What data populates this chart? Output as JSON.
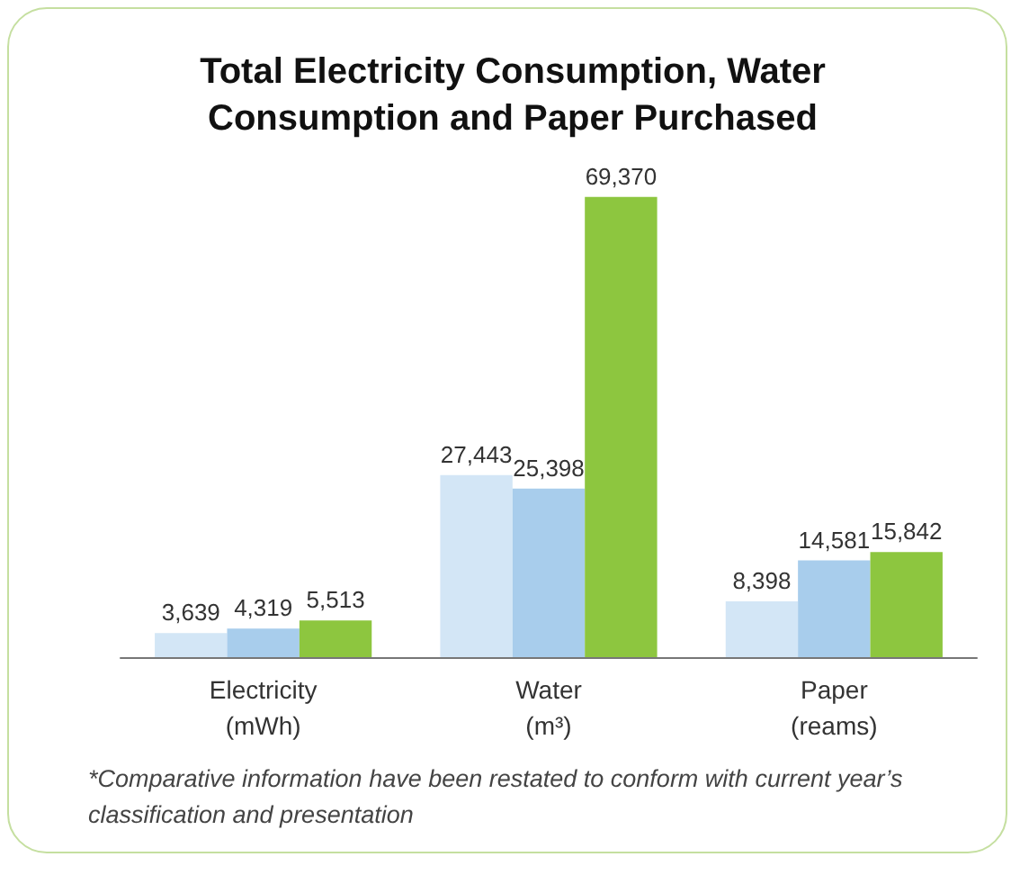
{
  "chart_data": {
    "type": "bar",
    "title": "Total Electricity Consumption, Water Consumption and Paper Purchased",
    "categories": [
      "Electricity\n(mWh)",
      "Water\n(m³)",
      "Paper\n(reams)"
    ],
    "series": [
      {
        "color": "#d3e6f6",
        "values": [
          3639,
          27443,
          8398
        ],
        "value_labels": [
          "3,639",
          "27,443",
          "8,398"
        ]
      },
      {
        "color": "#a8cdec",
        "values": [
          4319,
          25398,
          14581
        ],
        "value_labels": [
          "4,319",
          "25,398",
          "14,581"
        ]
      },
      {
        "color": "#8dc63f",
        "values": [
          5513,
          69370,
          15842
        ],
        "value_labels": [
          "5,513",
          "69,370",
          "15,842"
        ]
      }
    ],
    "annotations": [
      "*Comparative information have been restated to conform with current year’s classification and presentation"
    ]
  }
}
